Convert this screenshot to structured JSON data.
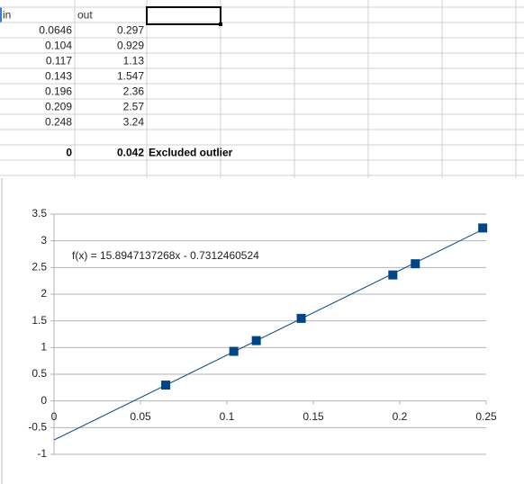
{
  "sheet": {
    "headers": [
      "in",
      "out"
    ],
    "rows": [
      [
        "0.0646",
        "0.297"
      ],
      [
        "0.104",
        "0.929"
      ],
      [
        "0.117",
        "1.13"
      ],
      [
        "0.143",
        "1.547"
      ],
      [
        "0.196",
        "2.36"
      ],
      [
        "0.209",
        "2.57"
      ],
      [
        "0.248",
        "3.24"
      ]
    ],
    "outlier": [
      "0",
      "0.042",
      "Excluded outlier"
    ]
  },
  "chart_data": {
    "type": "scatter",
    "x": [
      0.0646,
      0.104,
      0.117,
      0.143,
      0.196,
      0.209,
      0.248
    ],
    "series": [
      {
        "color": "#004586",
        "values": [
          0.297,
          0.929,
          1.13,
          1.547,
          2.36,
          2.57,
          3.24
        ]
      }
    ],
    "trendline": {
      "slope": 15.8947137268,
      "intercept": -0.7312460524,
      "label": "f(x) = 15.8947137268x - 0.7312460524"
    },
    "xlim": [
      0,
      0.25
    ],
    "xticks": [
      0,
      0.05,
      0.1,
      0.15,
      0.2,
      0.25
    ],
    "ylim": [
      -1,
      3.5
    ],
    "yticks": [
      -1,
      -0.5,
      0,
      0.5,
      1,
      1.5,
      2,
      2.5,
      3,
      3.5
    ],
    "grid": true
  }
}
